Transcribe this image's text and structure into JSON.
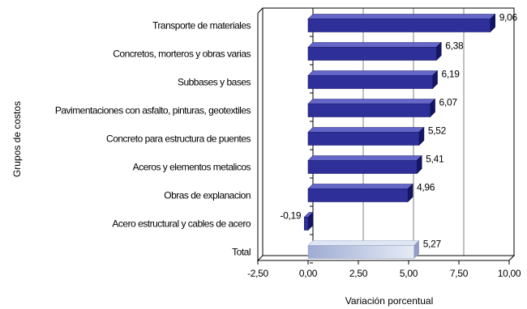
{
  "chart_data": {
    "type": "bar",
    "orientation": "horizontal",
    "style": "3d",
    "xlabel": "Variación porcentual",
    "ylabel": "Grupos de costos",
    "xlim": [
      -2.5,
      10
    ],
    "xticks": [
      -2.5,
      0,
      2.5,
      5,
      7.5,
      10
    ],
    "xtick_labels": [
      "-2,50",
      "0,00",
      "2,50",
      "5,00",
      "7,50",
      "10,00"
    ],
    "grid": "vertical",
    "legend": "none",
    "categories": [
      "Transporte de materiales",
      "Concretos, morteros y obras varias",
      "Subbases y bases",
      "Pavimentaciones con asfalto, pinturas, geotextiles",
      "Concreto para estructura de puentes",
      "Aceros y elementos metalicos",
      "Obras de explanacion",
      "Acero estructural y cables de acero",
      "Total"
    ],
    "values": [
      9.06,
      6.38,
      6.19,
      6.07,
      5.52,
      5.41,
      4.96,
      -0.19,
      5.27
    ],
    "value_labels": [
      "9,06",
      "6,38",
      "6,19",
      "6,07",
      "5,52",
      "5,41",
      "4,96",
      "-0,19",
      "5,27"
    ],
    "colors": {
      "bar_front": "#2e2f99",
      "bar_top": "#6466c8",
      "bar_side": "#141563",
      "total_bar": "#b7c3de",
      "grid": "#808080"
    }
  }
}
